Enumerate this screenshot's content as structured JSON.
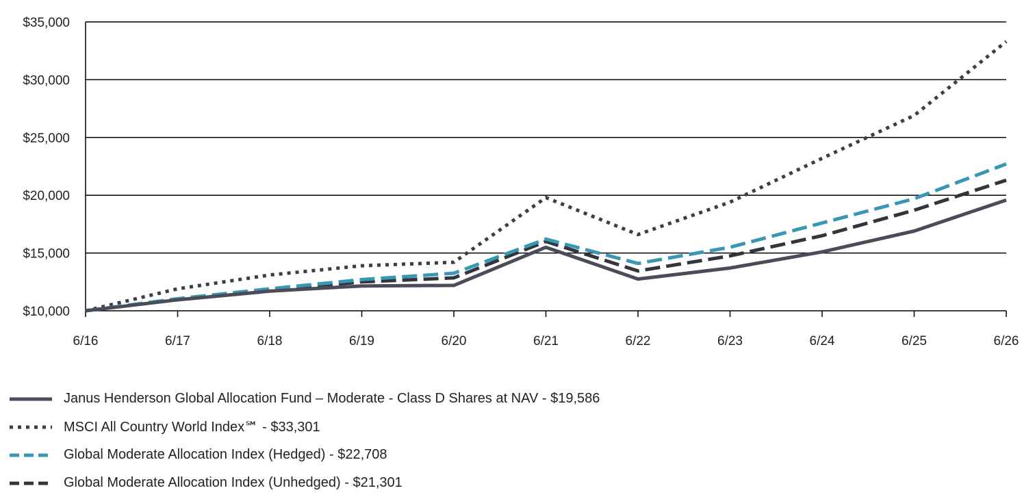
{
  "chart_data": {
    "type": "line",
    "title": "",
    "xlabel": "",
    "ylabel": "",
    "categories": [
      "6/16",
      "6/17",
      "6/18",
      "6/19",
      "6/20",
      "6/21",
      "6/22",
      "6/23",
      "6/24",
      "6/25",
      "6/26"
    ],
    "ylim": [
      10000,
      35000
    ],
    "yticks": [
      10000,
      15000,
      20000,
      25000,
      30000,
      35000
    ],
    "ytick_labels": [
      "$10,000",
      "$15,000",
      "$20,000",
      "$25,000",
      "$30,000",
      "$35,000"
    ],
    "grid": "horizontal",
    "legend_position": "bottom-left",
    "series": [
      {
        "name": "Janus Henderson Global Allocation Fund – Moderate - Class D Shares at NAV - $19,586",
        "style": "solid",
        "color": "#4a4d57",
        "values": [
          10000,
          10950,
          11700,
          12150,
          12200,
          15500,
          12750,
          13700,
          15100,
          16900,
          19586
        ]
      },
      {
        "name": "MSCI All Country World Index℠ - $33,301",
        "style": "dotted",
        "color": "#3c3e46",
        "values": [
          10000,
          11900,
          13100,
          13900,
          14200,
          19800,
          16600,
          19400,
          23200,
          26900,
          33301
        ]
      },
      {
        "name": "Global Moderate Allocation Index (Hedged) - $22,708",
        "style": "dashed",
        "color": "#3a97b3",
        "values": [
          10000,
          11050,
          11900,
          12700,
          13250,
          16200,
          14100,
          15500,
          17600,
          19700,
          22708
        ]
      },
      {
        "name": "Global Moderate Allocation Index (Unhedged) - $21,301",
        "style": "dashed",
        "color": "#33353d",
        "values": [
          10000,
          11000,
          11800,
          12500,
          12850,
          16000,
          13450,
          14750,
          16500,
          18700,
          21301
        ]
      }
    ]
  }
}
